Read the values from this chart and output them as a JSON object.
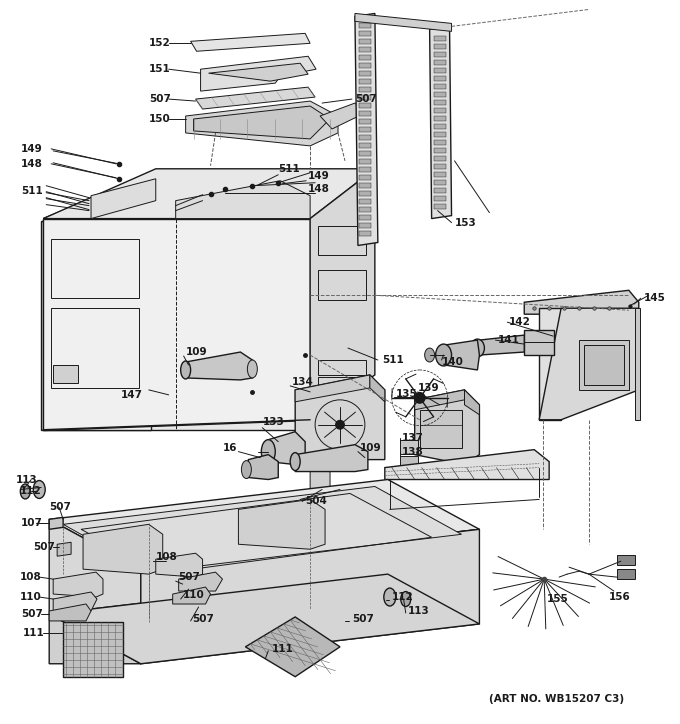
{
  "art_no": "(ART NO. WB15207 C3)",
  "bg_color": "#ffffff",
  "lc": "#1a1a1a",
  "fig_width": 6.8,
  "fig_height": 7.24,
  "dpi": 100
}
